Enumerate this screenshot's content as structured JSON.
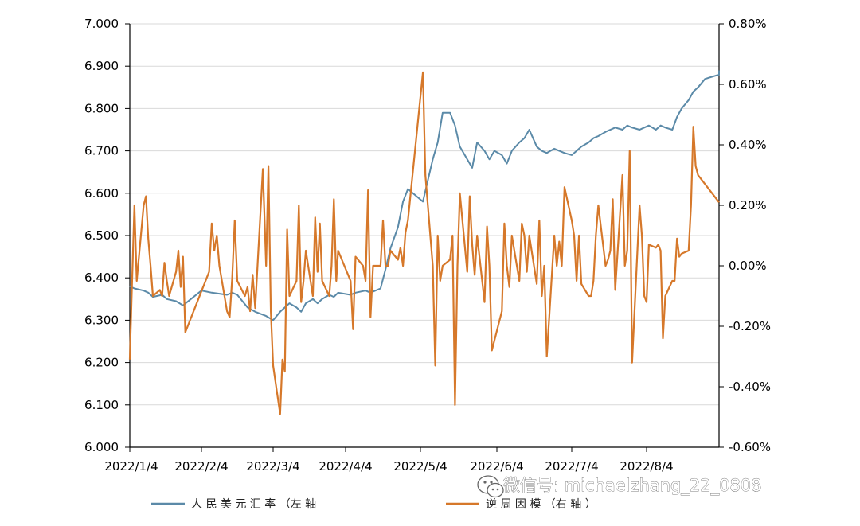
{
  "chart_data": {
    "type": "line",
    "x_tick_labels": [
      "2022/1/4",
      "2022/2/4",
      "2022/3/4",
      "2022/4/4",
      "2022/5/4",
      "2022/6/4",
      "2022/7/4",
      "2022/8/4"
    ],
    "y_left": {
      "ylim": [
        6.0,
        7.0
      ],
      "tick_labels": [
        "6.000",
        "6.100",
        "6.200",
        "6.300",
        "6.400",
        "6.500",
        "6.600",
        "6.700",
        "6.800",
        "6.900",
        "7.000"
      ]
    },
    "y_right": {
      "ylim": [
        -0.6,
        0.8
      ],
      "tick_labels": [
        "-0.60%",
        "-0.40%",
        "-0.20%",
        "0.00%",
        "0.20%",
        "0.40%",
        "0.60%",
        "0.80%"
      ]
    },
    "grid": "horizontal",
    "legend_position": "bottom",
    "series": [
      {
        "name": "人民币兑美元汇率（左轴）",
        "legend_text": "人 民 美 元 汇 率 （左 轴",
        "axis": "left",
        "color": "#5b8aa8",
        "points": [
          [
            "2022-01-04",
            6.38
          ],
          [
            "2022-01-06",
            6.375
          ],
          [
            "2022-01-10",
            6.37
          ],
          [
            "2022-01-12",
            6.365
          ],
          [
            "2022-01-14",
            6.355
          ],
          [
            "2022-01-18",
            6.36
          ],
          [
            "2022-01-20",
            6.35
          ],
          [
            "2022-01-24",
            6.345
          ],
          [
            "2022-01-27",
            6.335
          ],
          [
            "2022-02-04",
            6.37
          ],
          [
            "2022-02-08",
            6.365
          ],
          [
            "2022-02-14",
            6.36
          ],
          [
            "2022-02-16",
            6.365
          ],
          [
            "2022-02-18",
            6.36
          ],
          [
            "2022-02-22",
            6.33
          ],
          [
            "2022-02-25",
            6.32
          ],
          [
            "2022-03-01",
            6.31
          ],
          [
            "2022-03-04",
            6.3
          ],
          [
            "2022-03-07",
            6.32
          ],
          [
            "2022-03-09",
            6.33
          ],
          [
            "2022-03-11",
            6.34
          ],
          [
            "2022-03-14",
            6.33
          ],
          [
            "2022-03-16",
            6.32
          ],
          [
            "2022-03-18",
            6.34
          ],
          [
            "2022-03-21",
            6.35
          ],
          [
            "2022-03-23",
            6.34
          ],
          [
            "2022-03-25",
            6.35
          ],
          [
            "2022-03-28",
            6.36
          ],
          [
            "2022-03-30",
            6.355
          ],
          [
            "2022-04-01",
            6.365
          ],
          [
            "2022-04-06",
            6.36
          ],
          [
            "2022-04-08",
            6.365
          ],
          [
            "2022-04-12",
            6.37
          ],
          [
            "2022-04-14",
            6.365
          ],
          [
            "2022-04-18",
            6.375
          ],
          [
            "2022-04-20",
            6.42
          ],
          [
            "2022-04-22",
            6.47
          ],
          [
            "2022-04-25",
            6.52
          ],
          [
            "2022-04-27",
            6.58
          ],
          [
            "2022-04-29",
            6.61
          ],
          [
            "2022-05-05",
            6.58
          ],
          [
            "2022-05-09",
            6.68
          ],
          [
            "2022-05-11",
            6.72
          ],
          [
            "2022-05-13",
            6.79
          ],
          [
            "2022-05-16",
            6.79
          ],
          [
            "2022-05-18",
            6.76
          ],
          [
            "2022-05-20",
            6.71
          ],
          [
            "2022-05-23",
            6.68
          ],
          [
            "2022-05-25",
            6.66
          ],
          [
            "2022-05-27",
            6.72
          ],
          [
            "2022-05-30",
            6.7
          ],
          [
            "2022-06-01",
            6.68
          ],
          [
            "2022-06-03",
            6.7
          ],
          [
            "2022-06-06",
            6.69
          ],
          [
            "2022-06-08",
            6.67
          ],
          [
            "2022-06-10",
            6.7
          ],
          [
            "2022-06-13",
            6.72
          ],
          [
            "2022-06-15",
            6.73
          ],
          [
            "2022-06-17",
            6.75
          ],
          [
            "2022-06-20",
            6.71
          ],
          [
            "2022-06-22",
            6.7
          ],
          [
            "2022-06-24",
            6.695
          ],
          [
            "2022-06-27",
            6.705
          ],
          [
            "2022-06-29",
            6.7
          ],
          [
            "2022-07-01",
            6.695
          ],
          [
            "2022-07-04",
            6.69
          ],
          [
            "2022-07-06",
            6.7
          ],
          [
            "2022-07-08",
            6.71
          ],
          [
            "2022-07-11",
            6.72
          ],
          [
            "2022-07-13",
            6.73
          ],
          [
            "2022-07-15",
            6.735
          ],
          [
            "2022-07-18",
            6.745
          ],
          [
            "2022-07-20",
            6.75
          ],
          [
            "2022-07-22",
            6.755
          ],
          [
            "2022-07-25",
            6.75
          ],
          [
            "2022-07-27",
            6.76
          ],
          [
            "2022-07-29",
            6.755
          ],
          [
            "2022-08-01",
            6.75
          ],
          [
            "2022-08-03",
            6.755
          ],
          [
            "2022-08-05",
            6.76
          ],
          [
            "2022-08-08",
            6.75
          ],
          [
            "2022-08-10",
            6.76
          ],
          [
            "2022-08-12",
            6.755
          ],
          [
            "2022-08-15",
            6.75
          ],
          [
            "2022-08-17",
            6.78
          ],
          [
            "2022-08-19",
            6.8
          ],
          [
            "2022-08-22",
            6.82
          ],
          [
            "2022-08-24",
            6.84
          ],
          [
            "2022-08-26",
            6.85
          ],
          [
            "2022-08-29",
            6.87
          ],
          [
            "2022-09-01",
            6.88
          ],
          [
            "2022-09-02",
            6.89
          ]
        ]
      },
      {
        "name": "逆周期因子（右轴）",
        "legend_text": "逆 周 因 模 （右 轴 ）",
        "axis": "right",
        "color": "#d6782a",
        "points": [
          [
            "2022-01-04",
            -0.31
          ],
          [
            "2022-01-05",
            -0.05
          ],
          [
            "2022-01-06",
            0.2
          ],
          [
            "2022-01-07",
            -0.05
          ],
          [
            "2022-01-10",
            0.2
          ],
          [
            "2022-01-11",
            0.23
          ],
          [
            "2022-01-12",
            0.09
          ],
          [
            "2022-01-13",
            0.0
          ],
          [
            "2022-01-14",
            -0.1
          ],
          [
            "2022-01-17",
            -0.08
          ],
          [
            "2022-01-18",
            -0.1
          ],
          [
            "2022-01-19",
            0.01
          ],
          [
            "2022-01-20",
            -0.05
          ],
          [
            "2022-01-21",
            -0.1
          ],
          [
            "2022-01-24",
            -0.02
          ],
          [
            "2022-01-25",
            0.05
          ],
          [
            "2022-01-26",
            -0.07
          ],
          [
            "2022-01-27",
            0.03
          ],
          [
            "2022-01-28",
            -0.22
          ],
          [
            "2022-02-07",
            -0.02
          ],
          [
            "2022-02-08",
            0.14
          ],
          [
            "2022-02-09",
            0.05
          ],
          [
            "2022-02-10",
            0.1
          ],
          [
            "2022-02-11",
            0.0
          ],
          [
            "2022-02-14",
            -0.15
          ],
          [
            "2022-02-15",
            -0.17
          ],
          [
            "2022-02-16",
            -0.04
          ],
          [
            "2022-02-17",
            0.15
          ],
          [
            "2022-02-18",
            -0.05
          ],
          [
            "2022-02-21",
            -0.1
          ],
          [
            "2022-02-22",
            -0.07
          ],
          [
            "2022-02-23",
            -0.15
          ],
          [
            "2022-02-24",
            -0.03
          ],
          [
            "2022-02-25",
            -0.14
          ],
          [
            "2022-02-28",
            0.32
          ],
          [
            "2022-03-01",
            0.0
          ],
          [
            "2022-03-02",
            0.33
          ],
          [
            "2022-03-03",
            -0.15
          ],
          [
            "2022-03-04",
            -0.33
          ],
          [
            "2022-03-07",
            -0.49
          ],
          [
            "2022-03-08",
            -0.31
          ],
          [
            "2022-03-09",
            -0.35
          ],
          [
            "2022-03-10",
            0.12
          ],
          [
            "2022-03-11",
            -0.1
          ],
          [
            "2022-03-14",
            -0.05
          ],
          [
            "2022-03-15",
            0.2
          ],
          [
            "2022-03-16",
            -0.12
          ],
          [
            "2022-03-17",
            -0.05
          ],
          [
            "2022-03-18",
            0.05
          ],
          [
            "2022-03-21",
            -0.1
          ],
          [
            "2022-03-22",
            0.16
          ],
          [
            "2022-03-23",
            -0.02
          ],
          [
            "2022-03-24",
            0.14
          ],
          [
            "2022-03-25",
            -0.05
          ],
          [
            "2022-03-28",
            -0.1
          ],
          [
            "2022-03-29",
            0.0
          ],
          [
            "2022-03-30",
            0.22
          ],
          [
            "2022-03-31",
            -0.05
          ],
          [
            "2022-04-01",
            0.05
          ],
          [
            "2022-04-06",
            -0.05
          ],
          [
            "2022-04-07",
            -0.21
          ],
          [
            "2022-04-08",
            0.03
          ],
          [
            "2022-04-11",
            0.0
          ],
          [
            "2022-04-12",
            -0.05
          ],
          [
            "2022-04-13",
            0.25
          ],
          [
            "2022-04-14",
            -0.17
          ],
          [
            "2022-04-15",
            0.0
          ],
          [
            "2022-04-18",
            0.0
          ],
          [
            "2022-04-19",
            0.15
          ],
          [
            "2022-04-20",
            0.0
          ],
          [
            "2022-04-21",
            0.0
          ],
          [
            "2022-04-22",
            0.05
          ],
          [
            "2022-04-25",
            0.02
          ],
          [
            "2022-04-26",
            0.06
          ],
          [
            "2022-04-27",
            0.0
          ],
          [
            "2022-04-28",
            0.11
          ],
          [
            "2022-04-29",
            0.15
          ],
          [
            "2022-05-05",
            0.64
          ],
          [
            "2022-05-06",
            0.3
          ],
          [
            "2022-05-09",
            0.0
          ],
          [
            "2022-05-10",
            -0.33
          ],
          [
            "2022-05-11",
            0.1
          ],
          [
            "2022-05-12",
            -0.05
          ],
          [
            "2022-05-13",
            0.0
          ],
          [
            "2022-05-16",
            0.02
          ],
          [
            "2022-05-17",
            0.1
          ],
          [
            "2022-05-18",
            -0.46
          ],
          [
            "2022-05-19",
            0.0
          ],
          [
            "2022-05-20",
            0.24
          ],
          [
            "2022-05-23",
            -0.02
          ],
          [
            "2022-05-24",
            0.23
          ],
          [
            "2022-05-25",
            0.07
          ],
          [
            "2022-05-26",
            -0.03
          ],
          [
            "2022-05-27",
            0.1
          ],
          [
            "2022-05-30",
            -0.12
          ],
          [
            "2022-05-31",
            0.13
          ],
          [
            "2022-06-01",
            0.0
          ],
          [
            "2022-06-02",
            -0.28
          ],
          [
            "2022-06-06",
            -0.15
          ],
          [
            "2022-06-07",
            0.14
          ],
          [
            "2022-06-08",
            0.0
          ],
          [
            "2022-06-09",
            -0.07
          ],
          [
            "2022-06-10",
            0.1
          ],
          [
            "2022-06-13",
            -0.05
          ],
          [
            "2022-06-14",
            0.14
          ],
          [
            "2022-06-15",
            0.1
          ],
          [
            "2022-06-16",
            -0.02
          ],
          [
            "2022-06-17",
            0.1
          ],
          [
            "2022-06-20",
            -0.06
          ],
          [
            "2022-06-21",
            0.15
          ],
          [
            "2022-06-22",
            -0.1
          ],
          [
            "2022-06-23",
            0.0
          ],
          [
            "2022-06-24",
            -0.3
          ],
          [
            "2022-06-27",
            0.1
          ],
          [
            "2022-06-28",
            0.0
          ],
          [
            "2022-06-29",
            0.08
          ],
          [
            "2022-06-30",
            0.0
          ],
          [
            "2022-07-01",
            0.26
          ],
          [
            "2022-07-04",
            0.15
          ],
          [
            "2022-07-05",
            0.1
          ],
          [
            "2022-07-06",
            -0.05
          ],
          [
            "2022-07-07",
            0.1
          ],
          [
            "2022-07-08",
            -0.06
          ],
          [
            "2022-07-11",
            -0.1
          ],
          [
            "2022-07-12",
            -0.1
          ],
          [
            "2022-07-13",
            -0.05
          ],
          [
            "2022-07-14",
            0.1
          ],
          [
            "2022-07-15",
            0.2
          ],
          [
            "2022-07-18",
            0.0
          ],
          [
            "2022-07-19",
            0.02
          ],
          [
            "2022-07-20",
            0.05
          ],
          [
            "2022-07-21",
            0.22
          ],
          [
            "2022-07-22",
            -0.08
          ],
          [
            "2022-07-25",
            0.3
          ],
          [
            "2022-07-26",
            0.0
          ],
          [
            "2022-07-27",
            0.05
          ],
          [
            "2022-07-28",
            0.38
          ],
          [
            "2022-07-29",
            -0.32
          ],
          [
            "2022-08-01",
            0.2
          ],
          [
            "2022-08-02",
            0.1
          ],
          [
            "2022-08-03",
            -0.1
          ],
          [
            "2022-08-04",
            -0.12
          ],
          [
            "2022-08-05",
            0.07
          ],
          [
            "2022-08-08",
            0.06
          ],
          [
            "2022-08-09",
            0.07
          ],
          [
            "2022-08-10",
            0.05
          ],
          [
            "2022-08-11",
            -0.24
          ],
          [
            "2022-08-12",
            -0.1
          ],
          [
            "2022-08-15",
            -0.05
          ],
          [
            "2022-08-16",
            -0.05
          ],
          [
            "2022-08-17",
            0.09
          ],
          [
            "2022-08-18",
            0.03
          ],
          [
            "2022-08-19",
            0.04
          ],
          [
            "2022-08-22",
            0.05
          ],
          [
            "2022-08-23",
            0.2
          ],
          [
            "2022-08-24",
            0.46
          ],
          [
            "2022-08-25",
            0.33
          ],
          [
            "2022-08-26",
            0.3
          ],
          [
            "2022-09-02",
            0.21
          ]
        ]
      }
    ]
  },
  "watermark": {
    "text": "微信号: michaelzhang_22_0808",
    "icon": "wechat-logo-icon"
  }
}
